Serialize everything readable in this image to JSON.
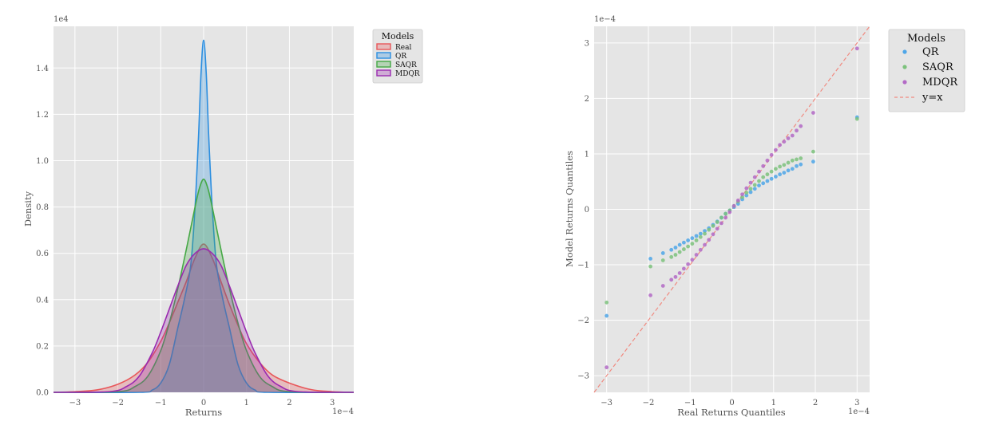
{
  "chart_data": [
    {
      "type": "area",
      "xlabel": "Returns",
      "ylabel": "Density",
      "x_scale_label": "1e−4",
      "y_scale_label": "1e4",
      "xlim": [
        -3.5,
        3.5
      ],
      "ylim": [
        0,
        1.58
      ],
      "xticks": [
        -3,
        -2,
        -1,
        0,
        1,
        2,
        3
      ],
      "yticks": [
        0.0,
        0.2,
        0.4,
        0.6,
        0.8,
        1.0,
        1.2,
        1.4
      ],
      "grid": true,
      "legend": {
        "title": "Models",
        "placement": "outside-top-right"
      },
      "series": [
        {
          "name": "Real",
          "color": "#e8575a",
          "x": [
            -3.5,
            -3,
            -2.5,
            -2,
            -1.6,
            -1.3,
            -1,
            -0.8,
            -0.6,
            -0.4,
            -0.2,
            0,
            0.2,
            0.4,
            0.6,
            0.8,
            1,
            1.3,
            1.6,
            2,
            2.5,
            3,
            3.5
          ],
          "y": [
            0.0,
            0.003,
            0.01,
            0.035,
            0.075,
            0.13,
            0.22,
            0.3,
            0.39,
            0.48,
            0.58,
            0.64,
            0.58,
            0.48,
            0.38,
            0.29,
            0.21,
            0.13,
            0.075,
            0.04,
            0.012,
            0.003,
            0.0
          ]
        },
        {
          "name": "QR",
          "color": "#2b8ee0",
          "x": [
            -3.5,
            -1.5,
            -1.2,
            -1,
            -0.8,
            -0.6,
            -0.45,
            -0.3,
            -0.2,
            -0.12,
            -0.06,
            0,
            0.06,
            0.12,
            0.2,
            0.3,
            0.45,
            0.6,
            0.8,
            1,
            1.2,
            1.5,
            3.5
          ],
          "y": [
            0.0,
            0.0,
            0.01,
            0.04,
            0.12,
            0.28,
            0.4,
            0.55,
            0.8,
            1.1,
            1.38,
            1.52,
            1.38,
            1.1,
            0.8,
            0.55,
            0.4,
            0.28,
            0.12,
            0.04,
            0.01,
            0.0,
            0.0
          ]
        },
        {
          "name": "SAQR",
          "color": "#45a845",
          "x": [
            -3.5,
            -2,
            -1.6,
            -1.3,
            -1,
            -0.8,
            -0.6,
            -0.4,
            -0.2,
            -0.1,
            0,
            0.1,
            0.2,
            0.4,
            0.6,
            0.8,
            1,
            1.3,
            1.6,
            2,
            3.5
          ],
          "y": [
            0.0,
            0.003,
            0.025,
            0.07,
            0.18,
            0.3,
            0.45,
            0.62,
            0.8,
            0.88,
            0.92,
            0.88,
            0.8,
            0.62,
            0.45,
            0.3,
            0.18,
            0.07,
            0.025,
            0.003,
            0.0
          ]
        },
        {
          "name": "MDQR",
          "color": "#9a2bb0",
          "x": [
            -3.5,
            -2.2,
            -1.8,
            -1.5,
            -1.2,
            -1,
            -0.8,
            -0.6,
            -0.4,
            -0.2,
            0,
            0.2,
            0.4,
            0.6,
            0.8,
            1,
            1.2,
            1.5,
            1.8,
            2.2,
            3.5
          ],
          "y": [
            0.0,
            0.003,
            0.025,
            0.07,
            0.17,
            0.26,
            0.36,
            0.46,
            0.55,
            0.6,
            0.62,
            0.6,
            0.55,
            0.46,
            0.36,
            0.26,
            0.17,
            0.07,
            0.025,
            0.003,
            0.0
          ]
        }
      ]
    },
    {
      "type": "scatter",
      "xlabel": "Real Returns Quantiles",
      "ylabel": "Model Returns Quantiles",
      "x_scale_label": "1e−4",
      "y_scale_label": "1e−4",
      "xlim": [
        -3.3,
        3.3
      ],
      "ylim": [
        -3.3,
        3.3
      ],
      "xticks": [
        -3,
        -2,
        -1,
        0,
        1,
        2,
        3
      ],
      "yticks": [
        -3,
        -2,
        -1,
        0,
        1,
        2,
        3
      ],
      "grid": true,
      "legend": {
        "title": "Models",
        "placement": "outside-top-right"
      },
      "reference_line": {
        "name": "y=x",
        "color": "#f08a80",
        "style": "dashed"
      },
      "series": [
        {
          "name": "QR",
          "color": "#4ea6e8",
          "marker": "circle"
        },
        {
          "name": "SAQR",
          "color": "#7cc27c",
          "marker": "circle"
        },
        {
          "name": "MDQR",
          "color": "#b36ac6",
          "marker": "circle"
        }
      ],
      "quantile_x": [
        -3.0,
        -1.95,
        -1.65,
        -1.45,
        -1.35,
        -1.25,
        -1.15,
        -1.05,
        -0.95,
        -0.85,
        -0.75,
        -0.65,
        -0.55,
        -0.45,
        -0.35,
        -0.25,
        -0.15,
        -0.05,
        0.05,
        0.15,
        0.25,
        0.35,
        0.45,
        0.55,
        0.65,
        0.75,
        0.85,
        0.95,
        1.05,
        1.15,
        1.25,
        1.35,
        1.45,
        1.55,
        1.65,
        1.95,
        3.0
      ],
      "quantile_y": {
        "QR": [
          -1.92,
          -0.89,
          -0.79,
          -0.73,
          -0.69,
          -0.64,
          -0.6,
          -0.56,
          -0.52,
          -0.48,
          -0.44,
          -0.39,
          -0.34,
          -0.28,
          -0.22,
          -0.15,
          -0.08,
          -0.02,
          0.04,
          0.1,
          0.18,
          0.25,
          0.31,
          0.37,
          0.43,
          0.47,
          0.51,
          0.55,
          0.59,
          0.63,
          0.66,
          0.7,
          0.73,
          0.78,
          0.81,
          0.86,
          1.66
        ],
        "SAQR": [
          -1.68,
          -1.03,
          -0.92,
          -0.86,
          -0.82,
          -0.77,
          -0.72,
          -0.67,
          -0.62,
          -0.56,
          -0.5,
          -0.44,
          -0.37,
          -0.3,
          -0.23,
          -0.15,
          -0.08,
          -0.02,
          0.06,
          0.14,
          0.22,
          0.3,
          0.37,
          0.44,
          0.51,
          0.58,
          0.63,
          0.68,
          0.73,
          0.77,
          0.8,
          0.84,
          0.88,
          0.9,
          0.92,
          1.04,
          1.63
        ],
        "MDQR": [
          -2.85,
          -1.55,
          -1.38,
          -1.27,
          -1.22,
          -1.15,
          -1.07,
          -0.99,
          -0.91,
          -0.82,
          -0.73,
          -0.64,
          -0.55,
          -0.45,
          -0.35,
          -0.25,
          -0.15,
          -0.05,
          0.06,
          0.16,
          0.27,
          0.38,
          0.48,
          0.58,
          0.68,
          0.78,
          0.88,
          0.98,
          1.07,
          1.16,
          1.22,
          1.28,
          1.33,
          1.42,
          1.5,
          1.74,
          2.9
        ]
      }
    }
  ]
}
